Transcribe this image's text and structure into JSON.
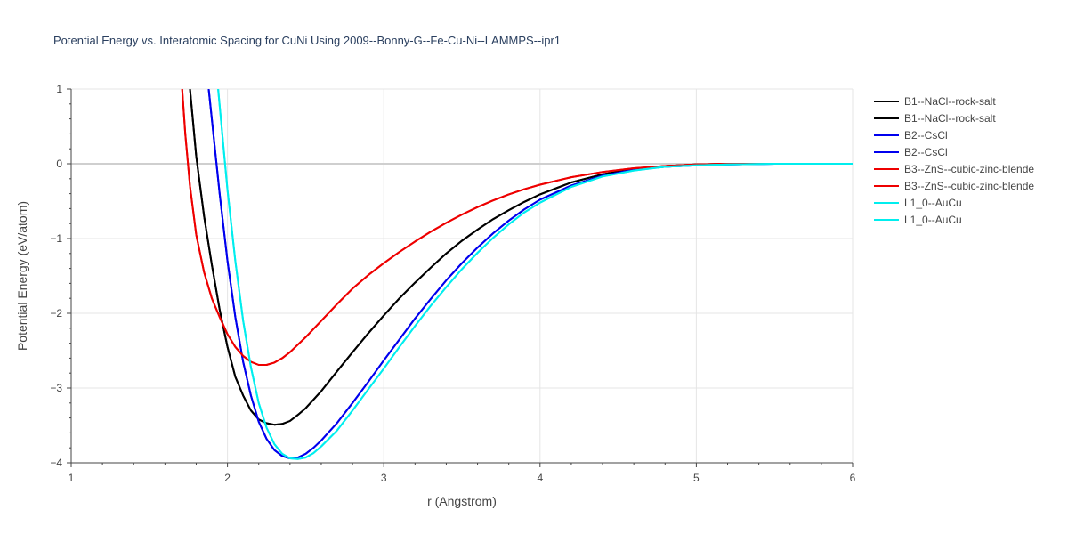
{
  "chart_data": {
    "type": "line",
    "title": "Potential Energy vs. Interatomic Spacing for CuNi Using 2009--Bonny-G--Fe-Cu-Ni--LAMMPS--ipr1",
    "xlabel": "r (Angstrom)",
    "ylabel": "Potential Energy (eV/atom)",
    "xlim": [
      1,
      6
    ],
    "ylim": [
      -4,
      1
    ],
    "x_ticks": [
      1,
      2,
      3,
      4,
      5,
      6
    ],
    "y_ticks": [
      1,
      0,
      -1,
      -2,
      -3,
      -4
    ],
    "x_tick_labels": [
      "1",
      "2",
      "3",
      "4",
      "5",
      "6"
    ],
    "y_tick_labels": [
      "1",
      "0",
      "−1",
      "−2",
      "−3",
      "−4"
    ],
    "grid": true,
    "legend_position": "right",
    "series": [
      {
        "name": "B1--NaCl--rock-salt",
        "color": "#000000",
        "x": [
          1.76,
          1.8,
          1.85,
          1.9,
          1.95,
          2.0,
          2.05,
          2.1,
          2.15,
          2.2,
          2.25,
          2.3,
          2.35,
          2.4,
          2.45,
          2.5,
          2.6,
          2.7,
          2.8,
          2.9,
          3.0,
          3.1,
          3.2,
          3.3,
          3.4,
          3.5,
          3.6,
          3.7,
          3.8,
          3.9,
          4.0,
          4.2,
          4.4,
          4.6,
          4.8,
          5.0,
          5.2,
          5.5,
          6.0
        ],
        "y": [
          1.0,
          0.1,
          -0.7,
          -1.35,
          -1.95,
          -2.45,
          -2.85,
          -3.1,
          -3.3,
          -3.42,
          -3.47,
          -3.49,
          -3.48,
          -3.44,
          -3.36,
          -3.27,
          -3.04,
          -2.78,
          -2.52,
          -2.27,
          -2.03,
          -1.8,
          -1.59,
          -1.39,
          -1.2,
          -1.03,
          -0.88,
          -0.74,
          -0.62,
          -0.51,
          -0.41,
          -0.25,
          -0.14,
          -0.07,
          -0.03,
          -0.01,
          0.0,
          0.0,
          0.0
        ]
      },
      {
        "name": "B1--NaCl--rock-salt",
        "color": "#000000",
        "x": [
          1.76,
          1.8,
          1.85,
          1.9,
          1.95,
          2.0,
          2.05,
          2.1,
          2.15,
          2.2,
          2.25,
          2.3,
          2.35,
          2.4,
          2.45,
          2.5,
          2.6,
          2.7,
          2.8,
          2.9,
          3.0,
          3.1,
          3.2,
          3.3,
          3.4,
          3.5,
          3.6,
          3.7,
          3.8,
          3.9,
          4.0,
          4.2,
          4.4,
          4.6,
          4.8,
          5.0,
          5.2,
          5.5,
          6.0
        ],
        "y": [
          1.0,
          0.1,
          -0.7,
          -1.35,
          -1.95,
          -2.45,
          -2.85,
          -3.1,
          -3.3,
          -3.42,
          -3.47,
          -3.49,
          -3.48,
          -3.44,
          -3.36,
          -3.27,
          -3.04,
          -2.78,
          -2.52,
          -2.27,
          -2.03,
          -1.8,
          -1.59,
          -1.39,
          -1.2,
          -1.03,
          -0.88,
          -0.74,
          -0.62,
          -0.51,
          -0.41,
          -0.25,
          -0.14,
          -0.07,
          -0.03,
          -0.01,
          0.0,
          0.0,
          0.0
        ]
      },
      {
        "name": "B2--CsCl",
        "color": "#0000ee",
        "x": [
          1.88,
          1.9,
          1.95,
          2.0,
          2.05,
          2.1,
          2.15,
          2.2,
          2.25,
          2.3,
          2.35,
          2.4,
          2.45,
          2.5,
          2.55,
          2.6,
          2.7,
          2.8,
          2.9,
          3.0,
          3.1,
          3.2,
          3.3,
          3.4,
          3.5,
          3.6,
          3.7,
          3.8,
          3.9,
          4.0,
          4.2,
          4.4,
          4.6,
          4.8,
          5.0,
          5.2,
          5.5,
          6.0
        ],
        "y": [
          1.0,
          0.6,
          -0.4,
          -1.3,
          -2.05,
          -2.65,
          -3.1,
          -3.45,
          -3.68,
          -3.83,
          -3.91,
          -3.94,
          -3.93,
          -3.88,
          -3.8,
          -3.7,
          -3.47,
          -3.2,
          -2.92,
          -2.63,
          -2.35,
          -2.07,
          -1.81,
          -1.56,
          -1.33,
          -1.12,
          -0.93,
          -0.76,
          -0.61,
          -0.48,
          -0.29,
          -0.16,
          -0.08,
          -0.04,
          -0.02,
          -0.01,
          0.0,
          0.0
        ]
      },
      {
        "name": "B2--CsCl",
        "color": "#0000ee",
        "x": [
          1.88,
          1.9,
          1.95,
          2.0,
          2.05,
          2.1,
          2.15,
          2.2,
          2.25,
          2.3,
          2.35,
          2.4,
          2.45,
          2.5,
          2.55,
          2.6,
          2.7,
          2.8,
          2.9,
          3.0,
          3.1,
          3.2,
          3.3,
          3.4,
          3.5,
          3.6,
          3.7,
          3.8,
          3.9,
          4.0,
          4.2,
          4.4,
          4.6,
          4.8,
          5.0,
          5.2,
          5.5,
          6.0
        ],
        "y": [
          1.0,
          0.6,
          -0.4,
          -1.3,
          -2.05,
          -2.65,
          -3.1,
          -3.45,
          -3.68,
          -3.83,
          -3.91,
          -3.94,
          -3.93,
          -3.88,
          -3.8,
          -3.7,
          -3.47,
          -3.2,
          -2.92,
          -2.63,
          -2.35,
          -2.07,
          -1.81,
          -1.56,
          -1.33,
          -1.12,
          -0.93,
          -0.76,
          -0.61,
          -0.48,
          -0.29,
          -0.16,
          -0.08,
          -0.04,
          -0.02,
          -0.01,
          0.0,
          0.0
        ]
      },
      {
        "name": "B3--ZnS--cubic-zinc-blende",
        "color": "#ee0000",
        "x": [
          1.71,
          1.73,
          1.76,
          1.8,
          1.85,
          1.9,
          1.95,
          2.0,
          2.05,
          2.1,
          2.15,
          2.2,
          2.25,
          2.3,
          2.35,
          2.4,
          2.5,
          2.6,
          2.7,
          2.8,
          2.9,
          3.0,
          3.1,
          3.2,
          3.3,
          3.4,
          3.5,
          3.6,
          3.7,
          3.8,
          3.9,
          4.0,
          4.2,
          4.4,
          4.6,
          4.8,
          5.0,
          5.2,
          5.5,
          6.0
        ],
        "y": [
          1.0,
          0.4,
          -0.3,
          -0.95,
          -1.45,
          -1.8,
          -2.05,
          -2.28,
          -2.45,
          -2.57,
          -2.65,
          -2.69,
          -2.69,
          -2.66,
          -2.6,
          -2.52,
          -2.32,
          -2.1,
          -1.88,
          -1.67,
          -1.49,
          -1.33,
          -1.18,
          -1.04,
          -0.91,
          -0.79,
          -0.68,
          -0.58,
          -0.49,
          -0.41,
          -0.34,
          -0.28,
          -0.18,
          -0.11,
          -0.06,
          -0.03,
          -0.01,
          0.0,
          0.0,
          0.0
        ]
      },
      {
        "name": "B3--ZnS--cubic-zinc-blende",
        "color": "#ee0000",
        "x": [
          1.71,
          1.73,
          1.76,
          1.8,
          1.85,
          1.9,
          1.95,
          2.0,
          2.05,
          2.1,
          2.15,
          2.2,
          2.25,
          2.3,
          2.35,
          2.4,
          2.5,
          2.6,
          2.7,
          2.8,
          2.9,
          3.0,
          3.1,
          3.2,
          3.3,
          3.4,
          3.5,
          3.6,
          3.7,
          3.8,
          3.9,
          4.0,
          4.2,
          4.4,
          4.6,
          4.8,
          5.0,
          5.2,
          5.5,
          6.0
        ],
        "y": [
          1.0,
          0.4,
          -0.3,
          -0.95,
          -1.45,
          -1.8,
          -2.05,
          -2.28,
          -2.45,
          -2.57,
          -2.65,
          -2.69,
          -2.69,
          -2.66,
          -2.6,
          -2.52,
          -2.32,
          -2.1,
          -1.88,
          -1.67,
          -1.49,
          -1.33,
          -1.18,
          -1.04,
          -0.91,
          -0.79,
          -0.68,
          -0.58,
          -0.49,
          -0.41,
          -0.34,
          -0.28,
          -0.18,
          -0.11,
          -0.06,
          -0.03,
          -0.01,
          0.0,
          0.0,
          0.0
        ]
      },
      {
        "name": "L1_0--AuCu",
        "color": "#00eeee",
        "x": [
          1.94,
          1.96,
          2.0,
          2.05,
          2.1,
          2.15,
          2.2,
          2.25,
          2.3,
          2.35,
          2.4,
          2.45,
          2.5,
          2.55,
          2.6,
          2.7,
          2.8,
          2.9,
          3.0,
          3.1,
          3.2,
          3.3,
          3.4,
          3.5,
          3.6,
          3.7,
          3.8,
          3.9,
          4.0,
          4.2,
          4.4,
          4.6,
          4.8,
          5.0,
          5.2,
          5.5,
          6.0
        ],
        "y": [
          1.0,
          0.55,
          -0.35,
          -1.3,
          -2.1,
          -2.72,
          -3.2,
          -3.53,
          -3.75,
          -3.88,
          -3.94,
          -3.95,
          -3.93,
          -3.87,
          -3.78,
          -3.57,
          -3.3,
          -3.02,
          -2.74,
          -2.45,
          -2.17,
          -1.9,
          -1.65,
          -1.41,
          -1.19,
          -0.99,
          -0.81,
          -0.65,
          -0.52,
          -0.31,
          -0.17,
          -0.09,
          -0.04,
          -0.02,
          -0.01,
          0.0,
          0.0
        ]
      },
      {
        "name": "L1_0--AuCu",
        "color": "#00eeee",
        "x": [
          1.94,
          1.96,
          2.0,
          2.05,
          2.1,
          2.15,
          2.2,
          2.25,
          2.3,
          2.35,
          2.4,
          2.45,
          2.5,
          2.55,
          2.6,
          2.7,
          2.8,
          2.9,
          3.0,
          3.1,
          3.2,
          3.3,
          3.4,
          3.5,
          3.6,
          3.7,
          3.8,
          3.9,
          4.0,
          4.2,
          4.4,
          4.6,
          4.8,
          5.0,
          5.2,
          5.5,
          6.0
        ],
        "y": [
          1.0,
          0.55,
          -0.35,
          -1.3,
          -2.1,
          -2.72,
          -3.2,
          -3.53,
          -3.75,
          -3.88,
          -3.94,
          -3.95,
          -3.93,
          -3.87,
          -3.78,
          -3.57,
          -3.3,
          -3.02,
          -2.74,
          -2.45,
          -2.17,
          -1.9,
          -1.65,
          -1.41,
          -1.19,
          -0.99,
          -0.81,
          -0.65,
          -0.52,
          -0.31,
          -0.17,
          -0.09,
          -0.04,
          -0.02,
          -0.01,
          0.0,
          0.0
        ]
      }
    ]
  }
}
